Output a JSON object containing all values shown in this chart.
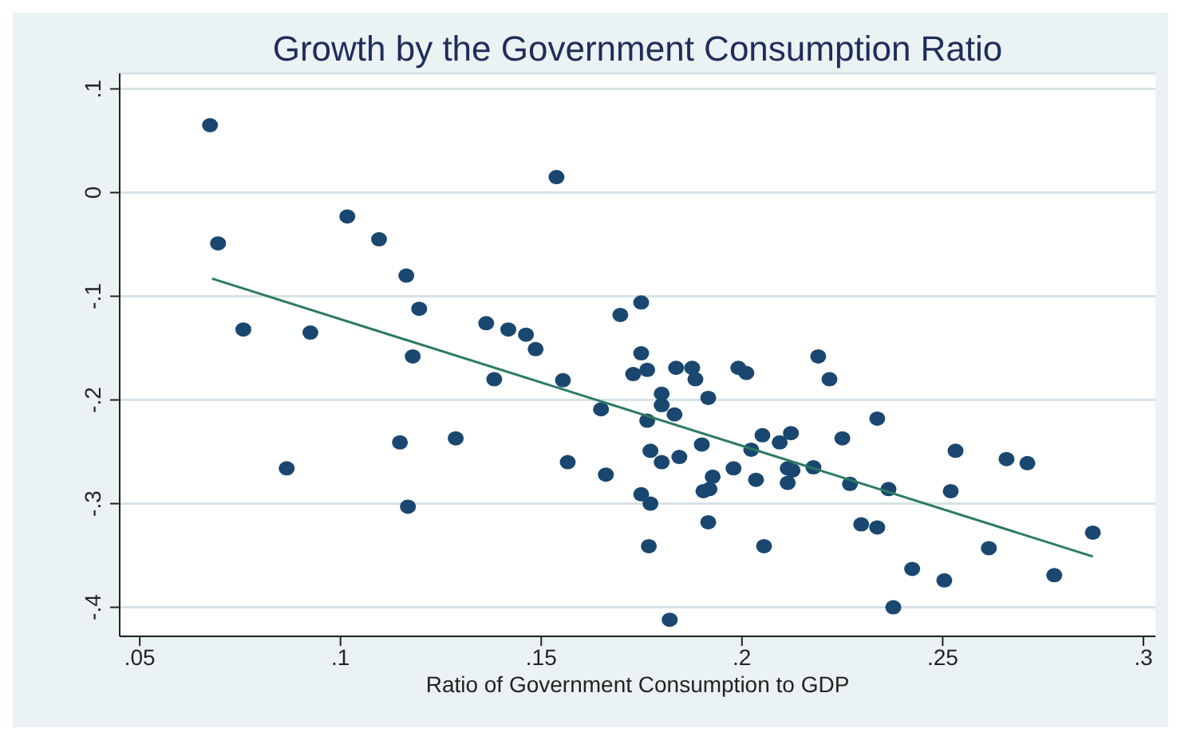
{
  "chart_data": {
    "type": "scatter",
    "title": "Growth by the Government Consumption Ratio",
    "xlabel": "Ratio of Government Consumption to GDP",
    "xlim": [
      0.045,
      0.303
    ],
    "xticks": [
      {
        "value": 0.05,
        "label": ".05"
      },
      {
        "value": 0.1,
        "label": ".1"
      },
      {
        "value": 0.15,
        "label": ".15"
      },
      {
        "value": 0.2,
        "label": ".2"
      },
      {
        "value": 0.25,
        "label": ".25"
      },
      {
        "value": 0.3,
        "label": ".3"
      }
    ],
    "ylim": [
      -0.428,
      0.115
    ],
    "yticks": [
      {
        "value": -0.4,
        "label": "-.4"
      },
      {
        "value": -0.3,
        "label": "-.3"
      },
      {
        "value": -0.2,
        "label": "-.2"
      },
      {
        "value": -0.1,
        "label": "-.1"
      },
      0,
      {
        "value": 0.1,
        "label": ".1"
      }
    ],
    "grid": "y",
    "series": [
      {
        "marker": "circle",
        "color": "#1a476f",
        "x": [
          0.0675,
          0.0695,
          0.0758,
          0.0925,
          0.0866,
          0.1017,
          0.1096,
          0.1164,
          0.1196,
          0.118,
          0.1148,
          0.1287,
          0.1168,
          0.1363,
          0.1418,
          0.1462,
          0.1486,
          0.1383,
          0.1554,
          0.1538,
          0.1749,
          0.1697,
          0.1749,
          0.1729,
          0.1764,
          0.1836,
          0.1876,
          0.1884,
          0.1991,
          0.2011,
          0.18,
          0.18,
          0.1832,
          0.1916,
          0.1649,
          0.1764,
          0.19,
          0.2051,
          0.2094,
          0.2023,
          0.1772,
          0.18,
          0.1844,
          0.1566,
          0.1661,
          0.1927,
          0.1979,
          0.2035,
          0.1904,
          0.1919,
          0.1749,
          0.1772,
          0.1916,
          0.1768,
          0.2055,
          0.182,
          0.219,
          0.2218,
          0.2337,
          0.225,
          0.2122,
          0.2532,
          0.2659,
          0.2711,
          0.2114,
          0.2126,
          0.2178,
          0.2114,
          0.2269,
          0.2365,
          0.252,
          0.2297,
          0.2337,
          0.2615,
          0.2874,
          0.2424,
          0.2504,
          0.2778,
          0.2377
        ],
        "values": [
          0.065,
          -0.049,
          -0.132,
          -0.135,
          -0.266,
          -0.023,
          -0.045,
          -0.08,
          -0.112,
          -0.158,
          -0.241,
          -0.237,
          -0.303,
          -0.126,
          -0.132,
          -0.137,
          -0.151,
          -0.18,
          -0.181,
          0.015,
          -0.106,
          -0.118,
          -0.155,
          -0.175,
          -0.171,
          -0.169,
          -0.169,
          -0.18,
          -0.169,
          -0.174,
          -0.194,
          -0.205,
          -0.214,
          -0.198,
          -0.209,
          -0.22,
          -0.243,
          -0.234,
          -0.241,
          -0.248,
          -0.249,
          -0.26,
          -0.255,
          -0.26,
          -0.272,
          -0.274,
          -0.266,
          -0.277,
          -0.288,
          -0.286,
          -0.291,
          -0.3,
          -0.318,
          -0.341,
          -0.341,
          -0.412,
          -0.158,
          -0.18,
          -0.218,
          -0.237,
          -0.232,
          -0.249,
          -0.257,
          -0.261,
          -0.266,
          -0.268,
          -0.265,
          -0.28,
          -0.281,
          -0.286,
          -0.288,
          -0.32,
          -0.323,
          -0.343,
          -0.328,
          -0.363,
          -0.374,
          -0.369,
          -0.4
        ]
      },
      {
        "type": "line",
        "marker": "none",
        "color": "#2c7a62",
        "x": [
          0.068,
          0.2874
        ],
        "values": [
          -0.083,
          -0.351
        ]
      }
    ]
  }
}
